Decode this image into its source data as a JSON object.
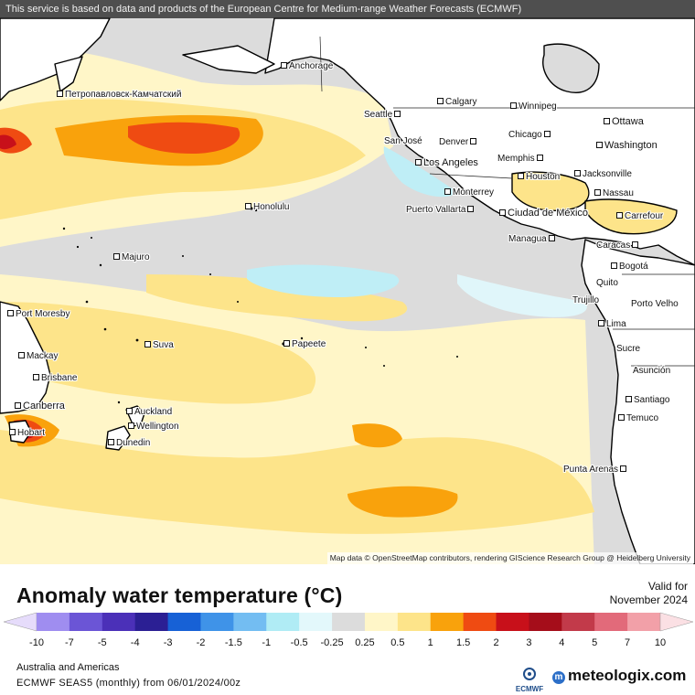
{
  "header": {
    "notice": "This service is based on data and products of the European Centre for Medium-range Weather Forecasts (ECMWF)"
  },
  "map": {
    "attribution": "Map data © OpenStreetMap contributors, rendering GIScience Research Group @ Heidelberg University",
    "colors": {
      "ocean_neutral": "#dcdcdc",
      "land": "#ffffff",
      "coast": "#000000",
      "warm_025": "#fff6c8",
      "warm_05": "#fde48a",
      "warm_1": "#f9a20c",
      "warm_15": "#ef4b12",
      "warm_2": "#c8101a",
      "cool_neg025": "#e0f6fa",
      "cool_neg05": "#bfeef6"
    },
    "cities": [
      {
        "name": "Anchorage"
      },
      {
        "name": "Петропавловск-Камчатский"
      },
      {
        "name": "Calgary"
      },
      {
        "name": "Winnipeg"
      },
      {
        "name": "Seattle"
      },
      {
        "name": "Ottawa"
      },
      {
        "name": "Chicago"
      },
      {
        "name": "San José"
      },
      {
        "name": "Denver"
      },
      {
        "name": "Washington"
      },
      {
        "name": "Memphis"
      },
      {
        "name": "Los Angeles"
      },
      {
        "name": "Houston"
      },
      {
        "name": "Jacksonville"
      },
      {
        "name": "Honolulu"
      },
      {
        "name": "Monterrey"
      },
      {
        "name": "Nassau"
      },
      {
        "name": "Puerto Vallarta"
      },
      {
        "name": "Ciudad de México"
      },
      {
        "name": "Carrefour"
      },
      {
        "name": "Managua"
      },
      {
        "name": "Caracas"
      },
      {
        "name": "Majuro"
      },
      {
        "name": "Bogotá"
      },
      {
        "name": "Quito"
      },
      {
        "name": "Trujillo"
      },
      {
        "name": "Porto Velho"
      },
      {
        "name": "Port Moresby"
      },
      {
        "name": "Lima"
      },
      {
        "name": "Suva"
      },
      {
        "name": "Papeete"
      },
      {
        "name": "Sucre"
      },
      {
        "name": "Mackay"
      },
      {
        "name": "Asunción"
      },
      {
        "name": "Brisbane"
      },
      {
        "name": "Santiago"
      },
      {
        "name": "Canberra"
      },
      {
        "name": "Auckland"
      },
      {
        "name": "Temuco"
      },
      {
        "name": "Wellington"
      },
      {
        "name": "Hobart"
      },
      {
        "name": "Dunedin"
      },
      {
        "name": "Punta Arenas"
      }
    ]
  },
  "legend": {
    "title": "Anomaly water temperature (°C)",
    "valid_label": "Valid for",
    "valid_date": "November 2024",
    "ticks": [
      "-10",
      "-7",
      "-5",
      "-4",
      "-3",
      "-2",
      "-1.5",
      "-1",
      "-0.5",
      "-0.25",
      "0.25",
      "0.5",
      "1",
      "1.5",
      "2",
      "3",
      "4",
      "5",
      "7",
      "10"
    ],
    "colors": [
      "#e6dcfb",
      "#9f8df0",
      "#6b55d6",
      "#4b30b8",
      "#2b1f94",
      "#1761d6",
      "#3f93e8",
      "#73bdf2",
      "#b0ecf5",
      "#e3f8fb",
      "#dcdcdc",
      "#fff6c8",
      "#fde48a",
      "#f9a20c",
      "#ef4b12",
      "#c8101a",
      "#a50d1a",
      "#c23a4a",
      "#e26a7a",
      "#f2a0a8",
      "#fbe0e4"
    ]
  },
  "footer": {
    "region": "Australia and Americas",
    "model_line": "ECMWF SEAS5 (monthly) from 06/01/2024/00z",
    "ecmwf_logo": "ECMWF",
    "brand": "meteologix.com"
  }
}
